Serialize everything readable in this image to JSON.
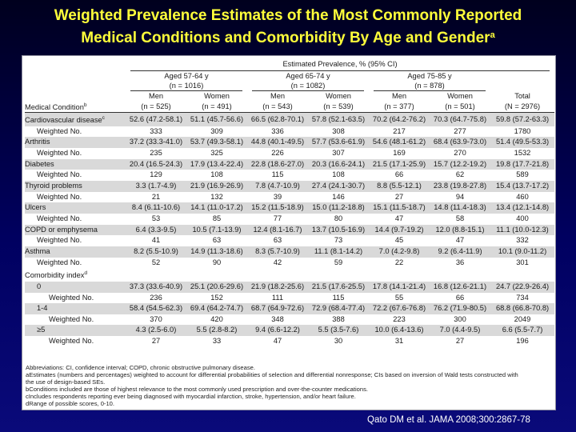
{
  "title": {
    "line1": "Weighted Prevalence Estimates of the Most Commonly Reported",
    "line2": "Medical Conditions and Comorbidity By Age and Gender",
    "sup": "a"
  },
  "table": {
    "super_header": "Estimated Prevalence, % (95% CI)",
    "age_groups": [
      {
        "label": "Aged 57-64 y",
        "n": "(n = 1016)"
      },
      {
        "label": "Aged 65-74 y",
        "n": "(n = 1082)"
      },
      {
        "label": "Aged 75-85 y",
        "n": "(n = 878)"
      }
    ],
    "condition_header": "Medical Condition",
    "condition_header_sup": "b",
    "columns": [
      {
        "label": "Men",
        "n": "(n = 525)"
      },
      {
        "label": "Women",
        "n": "(n = 491)"
      },
      {
        "label": "Men",
        "n": "(n = 543)"
      },
      {
        "label": "Women",
        "n": "(n = 539)"
      },
      {
        "label": "Men",
        "n": "(n = 377)"
      },
      {
        "label": "Women",
        "n": "(n = 501)"
      },
      {
        "label": "Total",
        "n": "(N = 2976)"
      }
    ],
    "rows": [
      {
        "label": "Cardiovascular disease",
        "sup": "c",
        "indent": 1,
        "shade": true,
        "cells": [
          "52.6 (47.2-58.1)",
          "51.1 (45.7-56.6)",
          "66.5 (62.8-70.1)",
          "57.8 (52.1-63.5)",
          "70.2 (64.2-76.2)",
          "70.3 (64.7-75.8)",
          "59.8 (57.2-63.3)"
        ]
      },
      {
        "label": "Weighted No.",
        "sup": "",
        "indent": 2,
        "shade": false,
        "cells": [
          "333",
          "309",
          "336",
          "308",
          "217",
          "277",
          "1780"
        ]
      },
      {
        "label": "Arthritis",
        "sup": "",
        "indent": 1,
        "shade": true,
        "cells": [
          "37.2 (33.3-41.0)",
          "53.7 (49.3-58.1)",
          "44.8 (40.1-49.5)",
          "57.7 (53.6-61.9)",
          "54.6 (48.1-61.2)",
          "68.4 (63.9-73.0)",
          "51.4 (49.5-53.3)"
        ]
      },
      {
        "label": "Weighted No.",
        "sup": "",
        "indent": 2,
        "shade": false,
        "cells": [
          "235",
          "325",
          "226",
          "307",
          "169",
          "270",
          "1532"
        ]
      },
      {
        "label": "Diabetes",
        "sup": "",
        "indent": 1,
        "shade": true,
        "cells": [
          "20.4 (16.5-24.3)",
          "17.9 (13.4-22.4)",
          "22.8 (18.6-27.0)",
          "20.3 (16.6-24.1)",
          "21.5 (17.1-25.9)",
          "15.7 (12.2-19.2)",
          "19.8 (17.7-21.8)"
        ]
      },
      {
        "label": "Weighted No.",
        "sup": "",
        "indent": 2,
        "shade": false,
        "cells": [
          "129",
          "108",
          "115",
          "108",
          "66",
          "62",
          "589"
        ]
      },
      {
        "label": "Thyroid problems",
        "sup": "",
        "indent": 1,
        "shade": true,
        "cells": [
          "3.3 (1.7-4.9)",
          "21.9 (16.9-26.9)",
          "7.8 (4.7-10.9)",
          "27.4 (24.1-30.7)",
          "8.8 (5.5-12.1)",
          "23.8 (19.8-27.8)",
          "15.4 (13.7-17.2)"
        ]
      },
      {
        "label": "Weighted No.",
        "sup": "",
        "indent": 2,
        "shade": false,
        "cells": [
          "21",
          "132",
          "39",
          "146",
          "27",
          "94",
          "460"
        ]
      },
      {
        "label": "Ulcers",
        "sup": "",
        "indent": 1,
        "shade": true,
        "cells": [
          "8.4 (6.11-10.6)",
          "14.1 (11.0-17.2)",
          "15.2 (11.5-18.9)",
          "15.0 (11.2-18.8)",
          "15.1 (11.5-18.7)",
          "14.8 (11.4-18.3)",
          "13.4 (12.1-14.8)"
        ]
      },
      {
        "label": "Weighted No.",
        "sup": "",
        "indent": 2,
        "shade": false,
        "cells": [
          "53",
          "85",
          "77",
          "80",
          "47",
          "58",
          "400"
        ]
      },
      {
        "label": "COPD or emphysema",
        "sup": "",
        "indent": 1,
        "shade": true,
        "cells": [
          "6.4 (3.3-9.5)",
          "10.5 (7.1-13.9)",
          "12.4 (8.1-16.7)",
          "13.7 (10.5-16.9)",
          "14.4 (9.7-19.2)",
          "12.0 (8.8-15.1)",
          "11.1 (10.0-12.3)"
        ]
      },
      {
        "label": "Weighted No.",
        "sup": "",
        "indent": 2,
        "shade": false,
        "cells": [
          "41",
          "63",
          "63",
          "73",
          "45",
          "47",
          "332"
        ]
      },
      {
        "label": "Asthma",
        "sup": "",
        "indent": 1,
        "shade": true,
        "cells": [
          "8.2 (5.5-10.9)",
          "14.9 (11.3-18.6)",
          "8.3 (5.7-10.9)",
          "11.1 (8.1-14.2)",
          "7.0 (4.2-9.8)",
          "9.2 (6.4-11.9)",
          "10.1 (9.0-11.2)"
        ]
      },
      {
        "label": "Weighted No.",
        "sup": "",
        "indent": 2,
        "shade": false,
        "cells": [
          "52",
          "90",
          "42",
          "59",
          "22",
          "36",
          "301"
        ]
      },
      {
        "label": "Comorbidity index",
        "sup": "d",
        "indent": 1,
        "shade": false,
        "cells": [
          "",
          "",
          "",
          "",
          "",
          "",
          ""
        ]
      },
      {
        "label": "0",
        "sup": "",
        "indent": 2,
        "shade": true,
        "cells": [
          "37.3 (33.6-40.9)",
          "25.1 (20.6-29.6)",
          "21.9 (18.2-25.6)",
          "21.5 (17.6-25.5)",
          "17.8 (14.1-21.4)",
          "16.8 (12.6-21.1)",
          "24.7 (22.9-26.4)"
        ]
      },
      {
        "label": "Weighted No.",
        "sup": "",
        "indent": 3,
        "shade": false,
        "cells": [
          "236",
          "152",
          "111",
          "115",
          "55",
          "66",
          "734"
        ]
      },
      {
        "label": "1-4",
        "sup": "",
        "indent": 2,
        "shade": true,
        "cells": [
          "58.4 (54.5-62.3)",
          "69.4 (64.2-74.7)",
          "68.7 (64.9-72.6)",
          "72.9 (68.4-77.4)",
          "72.2 (67.6-76.8)",
          "76.2 (71.9-80.5)",
          "68.8 (66.8-70.8)"
        ]
      },
      {
        "label": "Weighted No.",
        "sup": "",
        "indent": 3,
        "shade": false,
        "cells": [
          "370",
          "420",
          "348",
          "388",
          "223",
          "300",
          "2049"
        ]
      },
      {
        "label": "≥5",
        "sup": "",
        "indent": 2,
        "shade": true,
        "cells": [
          "4.3 (2.5-6.0)",
          "5.5 (2.8-8.2)",
          "9.4 (6.6-12.2)",
          "5.5 (3.5-7.6)",
          "10.0 (6.4-13.6)",
          "7.0 (4.4-9.5)",
          "6.6 (5.5-7.7)"
        ]
      },
      {
        "label": "Weighted No.",
        "sup": "",
        "indent": 3,
        "shade": false,
        "cells": [
          "27",
          "33",
          "47",
          "30",
          "31",
          "27",
          "196"
        ]
      }
    ],
    "footnotes": [
      "Abbreviations: CI, confidence interval; COPD, chronic obstructive pulmonary disease.",
      "aEstimates (numbers and percentages) weighted to account for differential probabilities of selection and differential nonresponse; CIs based on inversion of Wald tests constructed with",
      "  the use of design-based SEs.",
      "bConditions included are those of highest relevance to the most commonly used prescription and over-the-counter medications.",
      "cIncludes respondents reporting ever being diagnosed with myocardial infarction, stroke, hypertension, and/or heart failure.",
      "dRange of possible scores, 0-10."
    ]
  },
  "citation": "Qato DM et al. JAMA 2008;300:2867-78"
}
